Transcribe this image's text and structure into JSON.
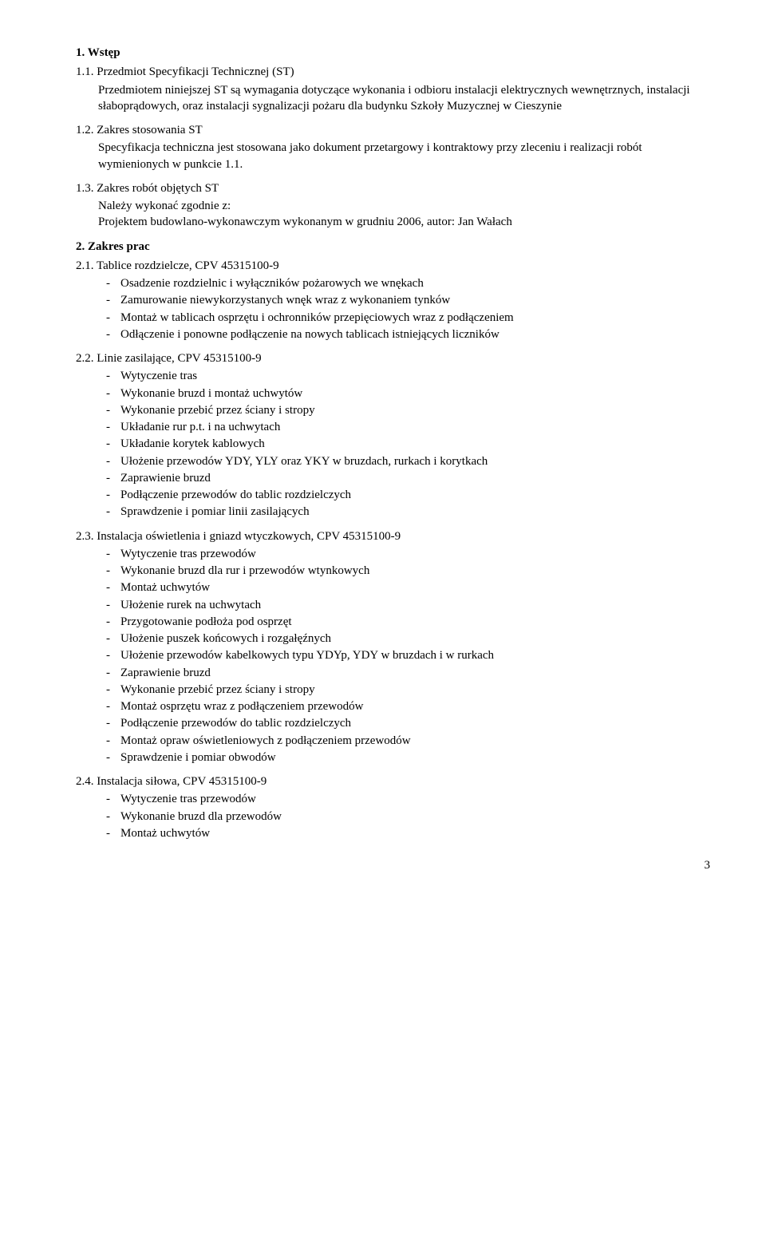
{
  "s1": {
    "head": "1.  Wstęp",
    "s11_num": "1.1. Przedmiot Specyfikacji Technicznej (ST)",
    "s11_body": "Przedmiotem niniejszej ST są wymagania dotyczące wykonania i odbioru instalacji elektrycznych wewnętrznych, instalacji słaboprądowych, oraz instalacji sygnalizacji pożaru dla budynku Szkoły Muzycznej w Cieszynie",
    "s12_num": "1.2.  Zakres stosowania ST",
    "s12_body": "Specyfikacja techniczna jest stosowana jako dokument przetargowy i kontraktowy przy zleceniu i realizacji robót wymienionych w punkcie 1.1.",
    "s13_num": "1.3.  Zakres robót objętych ST",
    "s13_l1": "Należy wykonać zgodnie z:",
    "s13_l2": "Projektem budowlano-wykonawczym wykonanym w grudniu 2006, autor: Jan Wałach"
  },
  "s2": {
    "head": "2.   Zakres prac",
    "s21_num": "2.1. Tablice rozdzielcze, CPV 45315100-9",
    "s21_items": [
      "Osadzenie rozdzielnic i wyłączników pożarowych we wnękach",
      "Zamurowanie niewykorzystanych wnęk wraz z wykonaniem tynków",
      "Montaż w tablicach osprzętu i ochronników przepięciowych wraz z podłączeniem",
      "Odłączenie i ponowne podłączenie na nowych tablicach istniejących liczników"
    ],
    "s22_num": "2.2.  Linie zasilające, CPV 45315100-9",
    "s22_items": [
      "Wytyczenie tras",
      "Wykonanie bruzd i montaż uchwytów",
      "Wykonanie przebić przez ściany i stropy",
      "Układanie rur p.t. i na uchwytach",
      "Układanie korytek kablowych",
      "Ułożenie przewodów YDY, YLY oraz YKY w bruzdach, rurkach i korytkach",
      "Zaprawienie bruzd",
      "Podłączenie przewodów do tablic rozdzielczych",
      "Sprawdzenie i pomiar linii zasilających"
    ],
    "s23_num": "2.3.  Instalacja oświetlenia i gniazd wtyczkowych, CPV 45315100-9",
    "s23_items": [
      "Wytyczenie tras przewodów",
      "Wykonanie bruzd dla rur i przewodów wtynkowych",
      "Montaż uchwytów",
      "Ułożenie rurek na uchwytach",
      "Przygotowanie podłoża pod osprzęt",
      "Ułożenie puszek końcowych i rozgałęźnych",
      "Ułożenie przewodów kabelkowych typu YDYp, YDY w bruzdach i w rurkach",
      "Zaprawienie bruzd",
      "Wykonanie przebić przez ściany i stropy",
      "Montaż osprzętu wraz z podłączeniem przewodów",
      "Podłączenie przewodów do tablic rozdzielczych",
      "Montaż opraw oświetleniowych z podłączeniem przewodów",
      "Sprawdzenie i pomiar obwodów"
    ],
    "s24_num": "2.4.   Instalacja siłowa, CPV 45315100-9",
    "s24_items": [
      "Wytyczenie tras przewodów",
      "Wykonanie bruzd dla przewodów",
      "Montaż uchwytów"
    ]
  },
  "page": "3"
}
